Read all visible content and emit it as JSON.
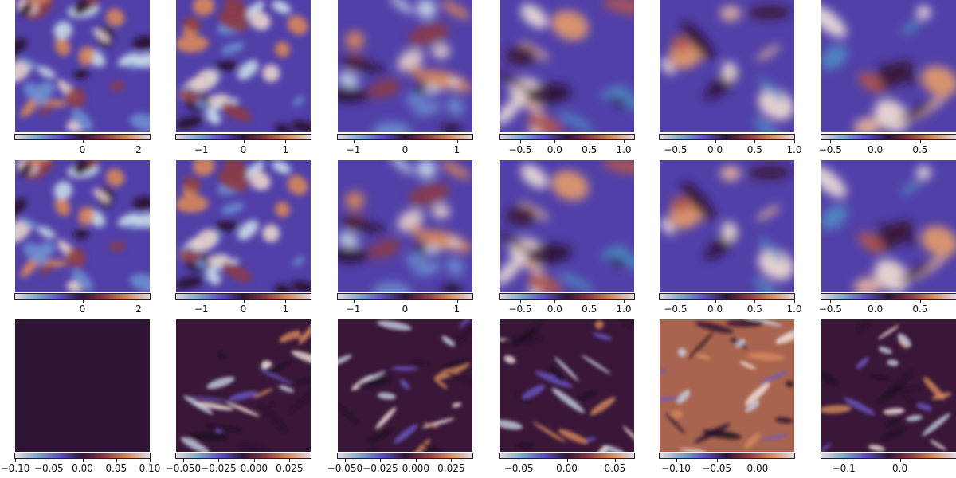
{
  "chart_data": {
    "type": "heatmap",
    "layout": "3 rows x 6 columns of vorticity-style field snapshots with horizontal colorbars",
    "colormap": [
      "#e2d9e2",
      "#7ea6c6",
      "#5b4cc0",
      "#2f1436",
      "#8b3a45",
      "#d68b5d",
      "#e2d9e2"
    ],
    "rows": [
      {
        "panels": [
          {
            "vmin": -2.4,
            "vmax": 2.4,
            "ticks": [
              "0",
              "2"
            ],
            "tick_values": [
              0,
              2
            ]
          },
          {
            "vmin": -1.6,
            "vmax": 1.6,
            "ticks": [
              "−1",
              "0",
              "1"
            ],
            "tick_values": [
              -1,
              0,
              1
            ]
          },
          {
            "vmin": -1.3,
            "vmax": 1.3,
            "ticks": [
              "−1",
              "0",
              "1"
            ],
            "tick_values": [
              -1,
              0,
              1
            ]
          },
          {
            "vmin": -0.8,
            "vmax": 1.15,
            "ticks": [
              "−0.5",
              "0.0",
              "0.5",
              "1.0"
            ],
            "tick_values": [
              -0.5,
              0,
              0.5,
              1.0
            ]
          },
          {
            "vmin": -0.7,
            "vmax": 1.0,
            "ticks": [
              "−0.5",
              "0.0",
              "0.5",
              "1.0"
            ],
            "tick_values": [
              -0.5,
              0,
              0.5,
              1.0
            ]
          },
          {
            "vmin": -0.6,
            "vmax": 0.9,
            "ticks": [
              "−0.5",
              "0.0",
              "0.5"
            ],
            "tick_values": [
              -0.5,
              0,
              0.5
            ]
          }
        ]
      },
      {
        "panels": [
          {
            "vmin": -2.4,
            "vmax": 2.4,
            "ticks": [
              "0",
              "2"
            ],
            "tick_values": [
              0,
              2
            ]
          },
          {
            "vmin": -1.6,
            "vmax": 1.6,
            "ticks": [
              "−1",
              "0",
              "1"
            ],
            "tick_values": [
              -1,
              0,
              1
            ]
          },
          {
            "vmin": -1.3,
            "vmax": 1.3,
            "ticks": [
              "−1",
              "0",
              "1"
            ],
            "tick_values": [
              -1,
              0,
              1
            ]
          },
          {
            "vmin": -0.8,
            "vmax": 1.15,
            "ticks": [
              "−0.5",
              "0.0",
              "0.5",
              "1.0"
            ],
            "tick_values": [
              -0.5,
              0,
              0.5,
              1.0
            ]
          },
          {
            "vmin": -0.7,
            "vmax": 1.0,
            "ticks": [
              "−0.5",
              "0.0",
              "0.5",
              "1.0"
            ],
            "tick_values": [
              -0.5,
              0,
              0.5,
              1.0
            ]
          },
          {
            "vmin": -0.6,
            "vmax": 0.9,
            "ticks": [
              "−0.5",
              "0.0",
              "0.5"
            ],
            "tick_values": [
              -0.5,
              0,
              0.5
            ]
          }
        ]
      },
      {
        "panels": [
          {
            "vmin": -0.1,
            "vmax": 0.1,
            "ticks": [
              "−0.10",
              "−0.05",
              "0.00",
              "0.05",
              "0.10"
            ],
            "tick_values": [
              -0.1,
              -0.05,
              0,
              0.05,
              0.1
            ]
          },
          {
            "vmin": -0.055,
            "vmax": 0.04,
            "ticks": [
              "−0.050",
              "−0.025",
              "0.000",
              "0.025"
            ],
            "tick_values": [
              -0.05,
              -0.025,
              0,
              0.025
            ]
          },
          {
            "vmin": -0.055,
            "vmax": 0.04,
            "ticks": [
              "−0.050",
              "−0.025",
              "0.000",
              "0.025"
            ],
            "tick_values": [
              -0.05,
              -0.025,
              0,
              0.025
            ]
          },
          {
            "vmin": -0.07,
            "vmax": 0.07,
            "ticks": [
              "−0.05",
              "0.00",
              "0.05"
            ],
            "tick_values": [
              -0.05,
              0,
              0.05
            ]
          },
          {
            "vmin": -0.12,
            "vmax": 0.045,
            "ticks": [
              "−0.10",
              "−0.05",
              "0.00"
            ],
            "tick_values": [
              -0.1,
              -0.05,
              0
            ]
          },
          {
            "vmin": -0.14,
            "vmax": 0.1,
            "ticks": [
              "−0.1",
              "0.0"
            ],
            "tick_values": [
              -0.1,
              0
            ]
          }
        ]
      }
    ]
  }
}
